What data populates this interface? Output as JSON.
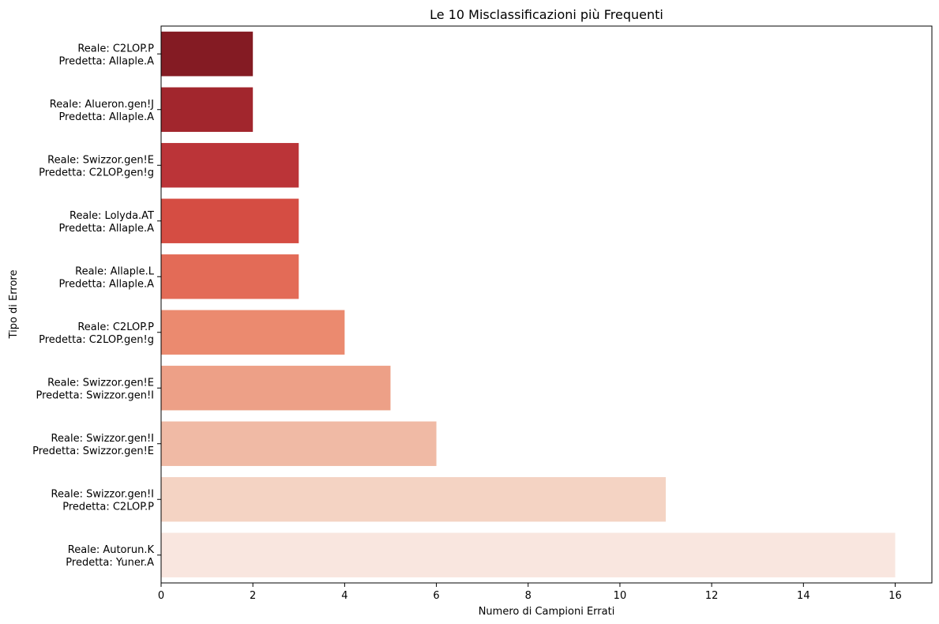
{
  "chart_data": {
    "type": "bar",
    "orientation": "horizontal",
    "title": "Le 10 Misclassificazioni più Frequenti",
    "xlabel": "Numero di Campioni Errati",
    "ylabel": "Tipo di Errore",
    "xlim": [
      0,
      16.8
    ],
    "xticks": [
      0,
      2,
      4,
      6,
      8,
      10,
      12,
      14,
      16
    ],
    "grid": false,
    "legend": "none",
    "categories": [
      [
        "Reale: C2LOP.P",
        "Predetta: Allaple.A"
      ],
      [
        "Reale: Alueron.gen!J",
        "Predetta: Allaple.A"
      ],
      [
        "Reale: Swizzor.gen!E",
        "Predetta: C2LOP.gen!g"
      ],
      [
        "Reale: Lolyda.AT",
        "Predetta: Allaple.A"
      ],
      [
        "Reale: Allaple.L",
        "Predetta: Allaple.A"
      ],
      [
        "Reale: C2LOP.P",
        "Predetta: C2LOP.gen!g"
      ],
      [
        "Reale: Swizzor.gen!E",
        "Predetta: Swizzor.gen!I"
      ],
      [
        "Reale: Swizzor.gen!I",
        "Predetta: Swizzor.gen!E"
      ],
      [
        "Reale: Swizzor.gen!I",
        "Predetta: C2LOP.P"
      ],
      [
        "Reale: Autorun.K",
        "Predetta: Yuner.A"
      ]
    ],
    "values": [
      2,
      2,
      3,
      3,
      3,
      4,
      5,
      6,
      11,
      16
    ],
    "colors": [
      "#841b23",
      "#a2262d",
      "#bb3438",
      "#d54d43",
      "#e36b57",
      "#eb8a6f",
      "#eda087",
      "#f0baa5",
      "#f4d3c3",
      "#f9e6df"
    ]
  }
}
